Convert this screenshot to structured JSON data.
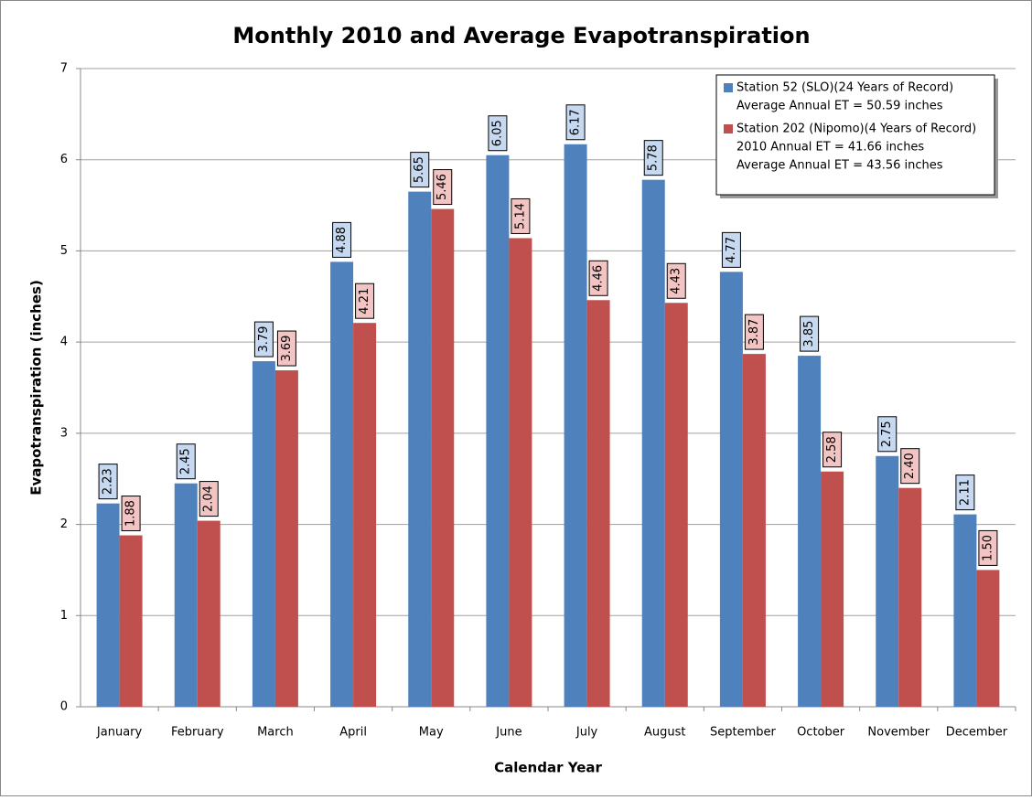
{
  "chart_data": {
    "type": "bar",
    "title": "Monthly 2010 and Average Evapotranspiration",
    "x_label": "Calendar Year",
    "y_label": "Evapotranspiration (inches)",
    "categories": [
      "January",
      "February",
      "March",
      "April",
      "May",
      "June",
      "July",
      "August",
      "September",
      "October",
      "November",
      "December"
    ],
    "series": [
      {
        "name": "Station 52 (SLO)(24 Years of Record)",
        "notes": [
          "Average Annual ET = 50.59 inches"
        ],
        "color": "#4f81bd",
        "label_color": "#c6d9f1",
        "values": [
          2.23,
          2.45,
          3.79,
          4.88,
          5.65,
          6.05,
          6.17,
          5.78,
          4.77,
          3.85,
          2.75,
          2.11
        ],
        "value_labels": [
          "2.23",
          "2.45",
          "3.79",
          "4.88",
          "5.65",
          "6.05",
          "6.17",
          "5.78",
          "4.77",
          "3.85",
          "2.75",
          "2.11"
        ]
      },
      {
        "name": "Station 202 (Nipomo)(4 Years of Record)",
        "notes": [
          "2010 Annual ET = 41.66 inches",
          "Average Annual ET = 43.56 inches"
        ],
        "color": "#c0504d",
        "label_color": "#f2c4c3",
        "values": [
          1.88,
          2.04,
          3.69,
          4.21,
          5.46,
          5.14,
          4.46,
          4.43,
          3.87,
          2.58,
          2.4,
          1.5
        ],
        "value_labels": [
          "1.88",
          "2.04",
          "3.69",
          "4.21",
          "5.46",
          "5.14",
          "4.46",
          "4.43",
          "3.87",
          "2.58",
          "2.40",
          "1.50"
        ]
      }
    ],
    "ylim": [
      0,
      7
    ],
    "yticks": [
      0,
      1,
      2,
      3,
      4,
      5,
      6,
      7
    ],
    "grid": true,
    "legend": "top-right"
  }
}
